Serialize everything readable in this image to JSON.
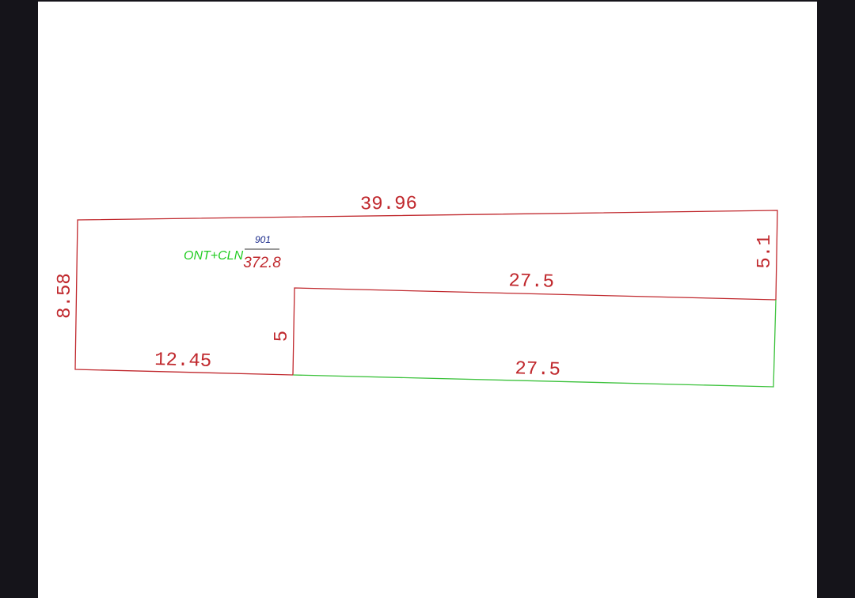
{
  "colors": {
    "boundary": "#c0282d",
    "frontage": "#3cc23c",
    "label_green": "#22cc22",
    "label_blue": "#1a2a8a",
    "label_red": "#c0282d",
    "background": "#15141a"
  },
  "dimensions": {
    "top": "39.96",
    "left": "8.58",
    "right": "5.1",
    "inner_top": "27.5",
    "inner_left": "5",
    "bottom_left": "12.45",
    "bottom_right": "27.5"
  },
  "plot_label": {
    "zone": "ONT+CLN",
    "plot_number": "901",
    "area": "372.8"
  }
}
